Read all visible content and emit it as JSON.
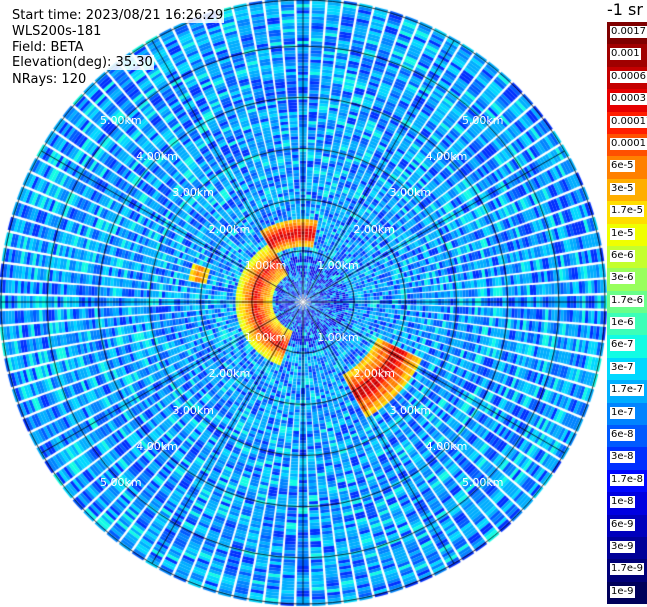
{
  "header": {
    "start_time": "Start time: 2023/08/21 16:26:29",
    "instrument": "WLS200s-181",
    "field": "Field: BETA",
    "elevation": "Elevation(deg): 35.30",
    "nrays": "NRays: 120"
  },
  "colorbar": {
    "unit_label": "-1 sr",
    "levels": [
      {
        "label": "0.0017",
        "color": "#7f0000"
      },
      {
        "label": "0.001",
        "color": "#a00000"
      },
      {
        "label": "0.0006",
        "color": "#c40000"
      },
      {
        "label": "0.0003",
        "color": "#e60000"
      },
      {
        "label": "0.00017",
        "color": "#ff1e00"
      },
      {
        "label": "0.0001",
        "color": "#ff5000"
      },
      {
        "label": "6e-5",
        "color": "#ff8000"
      },
      {
        "label": "3e-5",
        "color": "#ffae00"
      },
      {
        "label": "1.7e-5",
        "color": "#ffdd00"
      },
      {
        "label": "1e-5",
        "color": "#f0ff00"
      },
      {
        "label": "6e-6",
        "color": "#c4ff2e"
      },
      {
        "label": "3e-6",
        "color": "#98ff5c"
      },
      {
        "label": "1.7e-6",
        "color": "#6aff8a"
      },
      {
        "label": "1e-6",
        "color": "#3cffb8"
      },
      {
        "label": "6e-7",
        "color": "#12fce4"
      },
      {
        "label": "3e-7",
        "color": "#00d8ff"
      },
      {
        "label": "1.7e-7",
        "color": "#00aeff"
      },
      {
        "label": "1e-7",
        "color": "#0084ff"
      },
      {
        "label": "6e-8",
        "color": "#005aff"
      },
      {
        "label": "3e-8",
        "color": "#0030ff"
      },
      {
        "label": "1.7e-8",
        "color": "#0008ff"
      },
      {
        "label": "1e-8",
        "color": "#0000e0"
      },
      {
        "label": "6e-9",
        "color": "#0000bc"
      },
      {
        "label": "3e-9",
        "color": "#000098"
      },
      {
        "label": "1.7e-9",
        "color": "#000078"
      },
      {
        "label": "1e-9",
        "color": "#00005a"
      }
    ]
  },
  "chart_data": {
    "type": "heatmap",
    "projection": "polar (PPI scan)",
    "nrays": 120,
    "elevation_deg": 35.3,
    "field": "BETA",
    "range_unit": "km",
    "range_rings_km": [
      1,
      2,
      3,
      4,
      5
    ],
    "range_ring_labels": [
      "1.00km",
      "2.00km",
      "3.00km",
      "4.00km",
      "5.00km"
    ],
    "max_range_km": 5.9,
    "background_level": "1e-7 to 3e-7",
    "features": [
      {
        "label_hint": "arc west of centre",
        "range_km": [
          0.6,
          1.3
        ],
        "azimuth_deg": [
          200,
          330
        ],
        "level": "1e-5 to 0.0003"
      },
      {
        "label_hint": "band south-east",
        "range_km": [
          1.6,
          2.6
        ],
        "azimuth_deg": [
          115,
          150
        ],
        "level": "1.7e-5 to 0.0006"
      },
      {
        "label_hint": "patch north",
        "range_km": [
          1.1,
          1.6
        ],
        "azimuth_deg": [
          330,
          10
        ],
        "level": "3e-5 to 0.0006"
      },
      {
        "label_hint": "patch north-west near 2km",
        "range_km": [
          1.9,
          2.3
        ],
        "azimuth_deg": [
          280,
          290
        ],
        "level": "1e-5 to 6e-5"
      }
    ]
  }
}
